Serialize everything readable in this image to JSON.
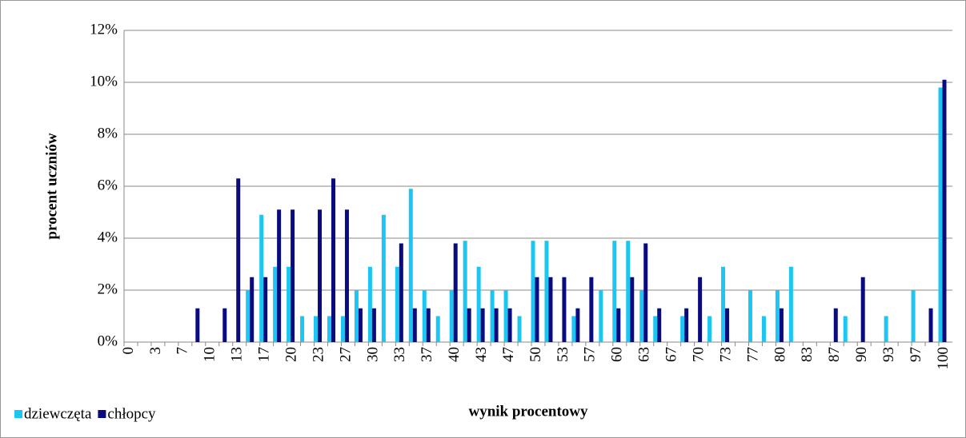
{
  "chart_data": {
    "type": "bar",
    "y_label": "procent uczniów",
    "x_label": "wynik procentowy",
    "categories": [
      "0",
      null,
      "3",
      null,
      "7",
      null,
      "10",
      null,
      "13",
      null,
      "17",
      null,
      "20",
      null,
      "23",
      null,
      "27",
      null,
      "30",
      null,
      "33",
      null,
      "37",
      null,
      "40",
      null,
      "43",
      null,
      "47",
      null,
      "50",
      null,
      "53",
      null,
      "57",
      null,
      "60",
      null,
      "63",
      null,
      "67",
      null,
      "70",
      null,
      "73",
      null,
      "77",
      null,
      "80",
      null,
      "83",
      null,
      "87",
      null,
      "90",
      null,
      "93",
      null,
      "97",
      null,
      "100"
    ],
    "series": [
      {
        "name": "dziewczęta",
        "color": "#1cc6f2",
        "values": [
          0,
          0,
          0,
          0,
          0,
          0,
          0,
          0,
          0,
          2.0,
          4.9,
          2.9,
          2.9,
          1.0,
          1.0,
          1.0,
          1.0,
          2.0,
          2.9,
          4.9,
          2.9,
          5.9,
          2.0,
          1.0,
          2.0,
          3.9,
          2.9,
          2.0,
          2.0,
          1.0,
          3.9,
          3.9,
          0,
          1.0,
          0,
          2.0,
          3.9,
          3.9,
          2.0,
          1.0,
          0,
          1.0,
          0,
          1.0,
          2.9,
          0,
          2.0,
          1.0,
          2.0,
          2.9,
          0,
          0,
          0,
          1.0,
          0,
          0,
          1.0,
          0,
          2.0,
          0,
          9.8
        ]
      },
      {
        "name": "chłopcy",
        "color": "#0b0b80",
        "values": [
          0,
          0,
          0,
          0,
          0,
          1.3,
          0,
          1.3,
          6.3,
          2.5,
          2.5,
          5.1,
          5.1,
          0,
          5.1,
          6.3,
          5.1,
          1.3,
          1.3,
          0,
          3.8,
          1.3,
          1.3,
          0,
          3.8,
          1.3,
          1.3,
          1.3,
          1.3,
          0,
          2.5,
          2.5,
          2.5,
          1.3,
          2.5,
          0,
          1.3,
          2.5,
          3.8,
          1.3,
          0,
          1.3,
          2.5,
          0,
          1.3,
          0,
          0,
          0,
          1.3,
          0,
          0,
          0,
          1.3,
          0,
          2.5,
          0,
          0,
          0,
          0,
          1.3,
          10.1
        ]
      }
    ],
    "ylim": [
      0,
      12
    ],
    "yticks": [
      {
        "value": 0,
        "label": "0%"
      },
      {
        "value": 2,
        "label": "2%"
      },
      {
        "value": 4,
        "label": "4%"
      },
      {
        "value": 6,
        "label": "6%"
      },
      {
        "value": 8,
        "label": "8%"
      },
      {
        "value": 10,
        "label": "10%"
      },
      {
        "value": 12,
        "label": "12%"
      }
    ],
    "grid": true,
    "legend": "bottom-left"
  }
}
